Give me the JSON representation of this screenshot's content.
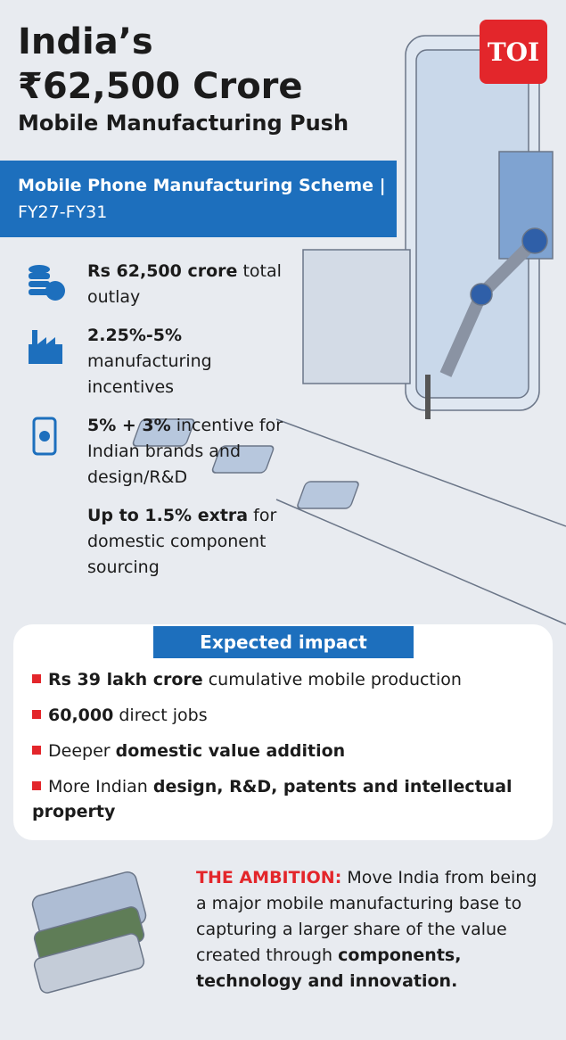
{
  "header": {
    "title_lines": [
      "India’s",
      "₹62,500 Crore",
      "Mobile Manufacturing Push"
    ],
    "logo": "TOI"
  },
  "scheme": {
    "bold": "Mobile Phone Manufacturing Scheme |",
    "regular": "FY27-FY31"
  },
  "features": [
    {
      "bold": "Rs 62,500 crore",
      "text": "total outlay"
    },
    {
      "bold": "2.25%-5%",
      "text": "manufacturing incentives"
    },
    {
      "bold": "5% + 3%",
      "text": "incentive for Indian brands and design/R&D"
    },
    {
      "bold": "Up to 1.5% extra",
      "text": "for domestic component sourcing"
    }
  ],
  "impact": {
    "heading": "Expected impact",
    "items": [
      [
        {
          "text": "Rs 39 lakh crore",
          "bold": true
        },
        {
          "text": "cumulative mobile production",
          "bold": false
        }
      ],
      [
        {
          "text": "60,000",
          "bold": true
        },
        {
          "text": "direct jobs",
          "bold": false
        }
      ],
      [
        {
          "text": "Deeper",
          "bold": false
        },
        {
          "text": "domestic value addition",
          "bold": true
        }
      ],
      [
        {
          "text": "More Indian",
          "bold": false
        },
        {
          "text": "design, R&D, patents and intellectual property",
          "bold": true
        }
      ]
    ]
  },
  "ambition": [
    {
      "text": "THE AMBITION:",
      "bold": true
    },
    {
      "text": "Move India from being a major mobile manufacturing base to capturing a larger share of the value created through",
      "bold": false
    },
    {
      "text": "components, technology and innovation.",
      "bold": true
    }
  ]
}
